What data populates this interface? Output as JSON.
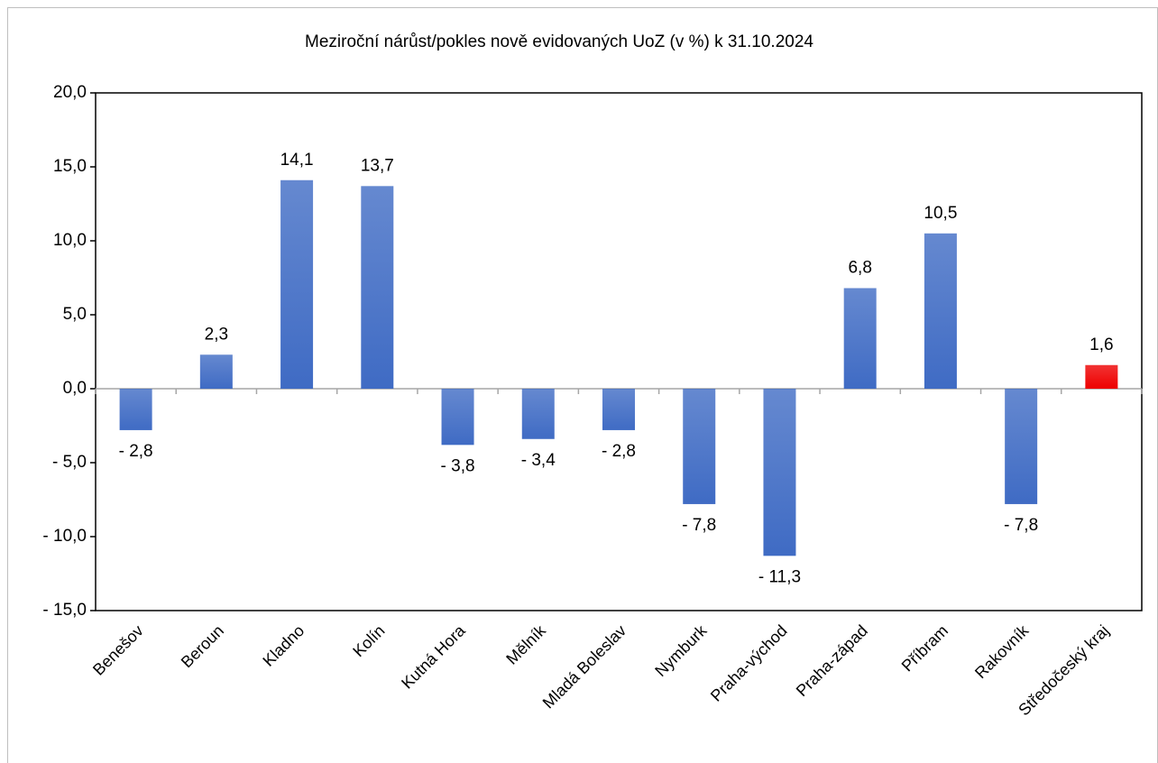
{
  "chart_data": {
    "type": "bar",
    "title": "Meziroční nárůst/pokles nově evidovaných UoZ (v %) k 31.10.2024",
    "categories": [
      "Benešov",
      "Beroun",
      "Kladno",
      "Kolín",
      "Kutná Hora",
      "Mělník",
      "Mladá Boleslav",
      "Nymburk",
      "Praha-východ",
      "Praha-západ",
      "Příbram",
      "Rakovník",
      "Středočeský kraj"
    ],
    "values": [
      -2.8,
      2.3,
      14.1,
      13.7,
      -3.8,
      -3.4,
      -2.8,
      -7.8,
      -11.3,
      6.8,
      10.5,
      -7.8,
      1.6
    ],
    "value_labels": [
      "- 2,8",
      "2,3",
      "14,1",
      "13,7",
      "- 3,8",
      "- 3,4",
      "- 2,8",
      "- 7,8",
      "- 11,3",
      "6,8",
      "10,5",
      "- 7,8",
      "1,6"
    ],
    "colors": [
      "#3f6bc4",
      "#3f6bc4",
      "#3f6bc4",
      "#3f6bc4",
      "#3f6bc4",
      "#3f6bc4",
      "#3f6bc4",
      "#3f6bc4",
      "#3f6bc4",
      "#3f6bc4",
      "#3f6bc4",
      "#3f6bc4",
      "#ee0000"
    ],
    "ylim": [
      -15,
      20
    ],
    "yticks": [
      {
        "value": 20,
        "label": "20,0"
      },
      {
        "value": 15,
        "label": "15,0"
      },
      {
        "value": 10,
        "label": "10,0"
      },
      {
        "value": 5,
        "label": "5,0"
      },
      {
        "value": 0,
        "label": "0,0"
      },
      {
        "value": -5,
        "label": "- 5,0"
      },
      {
        "value": -10,
        "label": "- 10,0"
      },
      {
        "value": -15,
        "label": "- 15,0"
      }
    ],
    "grid": false
  }
}
